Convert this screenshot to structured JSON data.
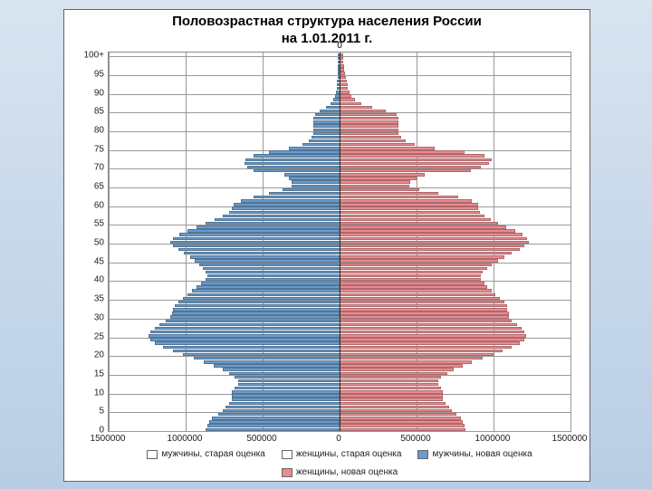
{
  "chart": {
    "type": "population-pyramid",
    "title_line1": "Половозрастная структура населения России",
    "title_line2": "на 1.01.2011 г.",
    "title_fontsize": 15,
    "background_color": "#ffffff",
    "frame_border_color": "#666666",
    "grid_color": "#999999",
    "male_color": "#6b9bc9",
    "female_color": "#e88b8f",
    "x_axis": {
      "min": -1500000,
      "max": 1500000,
      "ticks": [
        -1500000,
        -1000000,
        -500000,
        0,
        500000,
        1000000,
        1500000
      ],
      "tick_labels": [
        "1500000",
        "1000000",
        "500000",
        "0",
        "500000",
        "1000000",
        "1500000"
      ]
    },
    "y_axis": {
      "min": 0,
      "max": 101,
      "ticks": [
        0,
        5,
        10,
        15,
        20,
        25,
        30,
        35,
        40,
        45,
        50,
        55,
        60,
        65,
        70,
        75,
        80,
        85,
        90,
        95,
        100
      ],
      "tick_labels": [
        "0",
        "5",
        "10",
        "15",
        "20",
        "25",
        "30",
        "35",
        "40",
        "45",
        "50",
        "55",
        "60",
        "65",
        "70",
        "75",
        "80",
        "85",
        "90",
        "95",
        "100+"
      ]
    },
    "top_zero_label": "0",
    "legend": [
      {
        "label": "мужчины, старая оценка",
        "fill": null
      },
      {
        "label": "женщины, старая оценка",
        "fill": null
      },
      {
        "label": "мужчины, новая оценка",
        "fill": "#6b9bc9"
      },
      {
        "label": "женщины, новая оценка",
        "fill": "#e88b8f"
      }
    ],
    "ages": [
      0,
      1,
      2,
      3,
      4,
      5,
      6,
      7,
      8,
      9,
      10,
      11,
      12,
      13,
      14,
      15,
      16,
      17,
      18,
      19,
      20,
      21,
      22,
      23,
      24,
      25,
      26,
      27,
      28,
      29,
      30,
      31,
      32,
      33,
      34,
      35,
      36,
      37,
      38,
      39,
      40,
      41,
      42,
      43,
      44,
      45,
      46,
      47,
      48,
      49,
      50,
      51,
      52,
      53,
      54,
      55,
      56,
      57,
      58,
      59,
      60,
      61,
      62,
      63,
      64,
      65,
      66,
      67,
      68,
      69,
      70,
      71,
      72,
      73,
      74,
      75,
      76,
      77,
      78,
      79,
      80,
      81,
      82,
      83,
      84,
      85,
      86,
      87,
      88,
      89,
      90,
      91,
      92,
      93,
      94,
      95,
      96,
      97,
      98,
      99,
      100
    ],
    "male": [
      870000,
      860000,
      850000,
      830000,
      790000,
      760000,
      740000,
      720000,
      700000,
      700000,
      700000,
      680000,
      660000,
      660000,
      680000,
      720000,
      760000,
      820000,
      880000,
      950000,
      1020000,
      1080000,
      1150000,
      1200000,
      1230000,
      1240000,
      1230000,
      1200000,
      1170000,
      1130000,
      1100000,
      1090000,
      1080000,
      1070000,
      1050000,
      1020000,
      990000,
      960000,
      930000,
      900000,
      870000,
      860000,
      870000,
      890000,
      910000,
      940000,
      970000,
      1010000,
      1050000,
      1080000,
      1100000,
      1080000,
      1040000,
      990000,
      930000,
      870000,
      810000,
      760000,
      720000,
      700000,
      690000,
      640000,
      560000,
      460000,
      370000,
      310000,
      310000,
      330000,
      360000,
      560000,
      600000,
      620000,
      610000,
      560000,
      460000,
      330000,
      240000,
      200000,
      180000,
      170000,
      170000,
      170000,
      170000,
      170000,
      160000,
      130000,
      90000,
      60000,
      40000,
      30000,
      25000,
      20000,
      18000,
      16000,
      14000,
      12000,
      10000,
      9000,
      8000,
      7000,
      6000
    ],
    "female": [
      820000,
      810000,
      800000,
      790000,
      760000,
      730000,
      710000,
      690000,
      670000,
      670000,
      670000,
      660000,
      640000,
      640000,
      660000,
      700000,
      740000,
      800000,
      860000,
      930000,
      1000000,
      1060000,
      1120000,
      1170000,
      1200000,
      1210000,
      1200000,
      1180000,
      1150000,
      1120000,
      1100000,
      1100000,
      1090000,
      1090000,
      1070000,
      1040000,
      1010000,
      990000,
      960000,
      940000,
      920000,
      920000,
      930000,
      960000,
      990000,
      1030000,
      1070000,
      1120000,
      1170000,
      1200000,
      1230000,
      1220000,
      1190000,
      1140000,
      1080000,
      1030000,
      980000,
      940000,
      910000,
      900000,
      900000,
      860000,
      770000,
      640000,
      520000,
      450000,
      460000,
      500000,
      550000,
      850000,
      920000,
      970000,
      990000,
      940000,
      810000,
      620000,
      490000,
      430000,
      400000,
      380000,
      380000,
      380000,
      380000,
      380000,
      370000,
      300000,
      210000,
      140000,
      100000,
      75000,
      65000,
      55000,
      50000,
      45000,
      40000,
      35000,
      30000,
      28000,
      26000,
      24000,
      22000
    ]
  }
}
